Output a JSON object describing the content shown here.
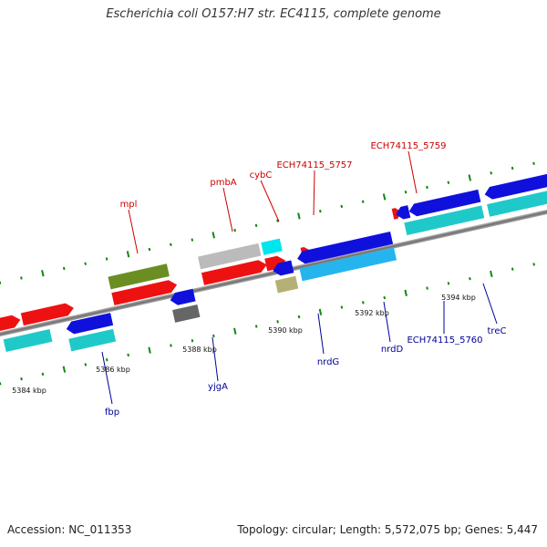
{
  "header": {
    "title": "Escherichia coli O157:H7 str. EC4115, complete genome"
  },
  "footer": {
    "accession": "Accession: NC_011353",
    "summary": "Topology: circular; Length: 5,572,075 bp; Genes: 5,447"
  },
  "tick_labels": [
    "5384 kbp",
    "5386 kbp",
    "5388 kbp",
    "5390 kbp",
    "5392 kbp",
    "5394 kbp"
  ],
  "forward_genes": [
    "mpl",
    "pmbA",
    "cybC",
    "ECH74115_5757",
    "ECH74115_5759"
  ],
  "reverse_genes": [
    "fbp",
    "yjgA",
    "nrdG",
    "nrdD",
    "ECH74115_5760",
    "treC"
  ],
  "colors": {
    "forward_label": "#cc0000",
    "reverse_label": "#000099",
    "tick": "#118811",
    "backbone": "#888888"
  }
}
